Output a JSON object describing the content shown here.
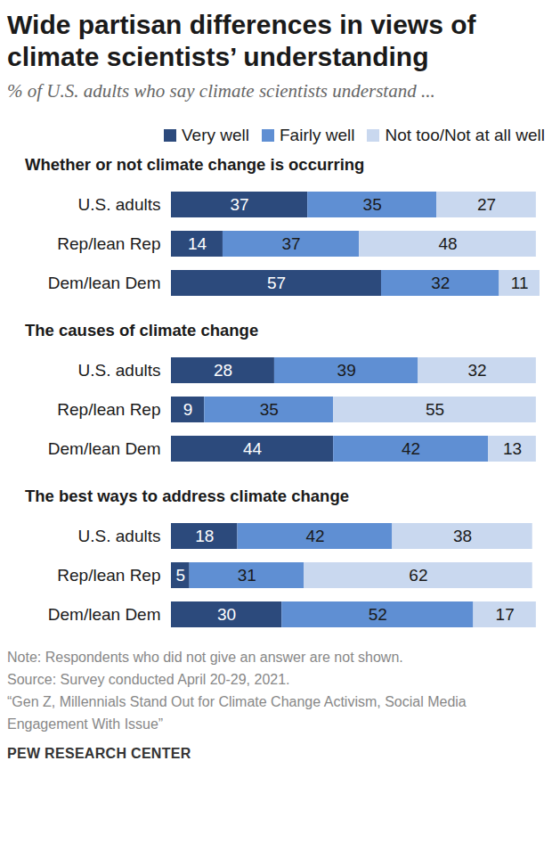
{
  "title": "Wide partisan differences in views of climate scientists’ understanding",
  "subtitle": "% of U.S. adults who say climate scientists understand ...",
  "footer": [
    "Note: Respondents who did not give an answer are not shown.",
    "Source: Survey conducted April 20-29, 2021.",
    "“Gen Z, Millennials Stand Out for Climate Change Activism, Social Media Engagement With Issue”"
  ],
  "credit": "PEW RESEARCH CENTER",
  "chart_data": [
    {
      "type": "bar",
      "title": "Whether or not climate change is occurring",
      "categories": [
        "U.S. adults",
        "Rep/lean Rep",
        "Dem/lean Dem"
      ],
      "series": [
        {
          "name": "Very well",
          "color": "#2c4a7c",
          "values": [
            37,
            14,
            57
          ]
        },
        {
          "name": "Fairly well",
          "color": "#5f8fd3",
          "values": [
            35,
            37,
            32
          ]
        },
        {
          "name": "Not too/Not at all well",
          "color": "#c9d8ef",
          "values": [
            27,
            48,
            11
          ]
        }
      ],
      "orientation": "horizontal",
      "stacked": true,
      "data_labels": true,
      "xlim": [
        0,
        100
      ],
      "tick_labels": "y",
      "legend": "top"
    },
    {
      "type": "bar",
      "title": "The causes of climate change",
      "categories": [
        "U.S. adults",
        "Rep/lean Rep",
        "Dem/lean Dem"
      ],
      "series": [
        {
          "name": "Very well",
          "color": "#2c4a7c",
          "values": [
            28,
            9,
            44
          ]
        },
        {
          "name": "Fairly well",
          "color": "#5f8fd3",
          "values": [
            39,
            35,
            42
          ]
        },
        {
          "name": "Not too/Not at all well",
          "color": "#c9d8ef",
          "values": [
            32,
            55,
            13
          ]
        }
      ],
      "orientation": "horizontal",
      "stacked": true,
      "data_labels": true,
      "xlim": [
        0,
        100
      ],
      "tick_labels": "y",
      "legend": "top"
    },
    {
      "type": "bar",
      "title": "The best ways to address climate change",
      "categories": [
        "U.S. adults",
        "Rep/lean Rep",
        "Dem/lean Dem"
      ],
      "series": [
        {
          "name": "Very well",
          "color": "#2c4a7c",
          "values": [
            18,
            5,
            30
          ]
        },
        {
          "name": "Fairly well",
          "color": "#5f8fd3",
          "values": [
            42,
            31,
            52
          ]
        },
        {
          "name": "Not too/Not at all well",
          "color": "#c9d8ef",
          "values": [
            38,
            62,
            17
          ]
        }
      ],
      "orientation": "horizontal",
      "stacked": true,
      "data_labels": true,
      "xlim": [
        0,
        100
      ],
      "tick_labels": "y",
      "legend": "top"
    }
  ]
}
